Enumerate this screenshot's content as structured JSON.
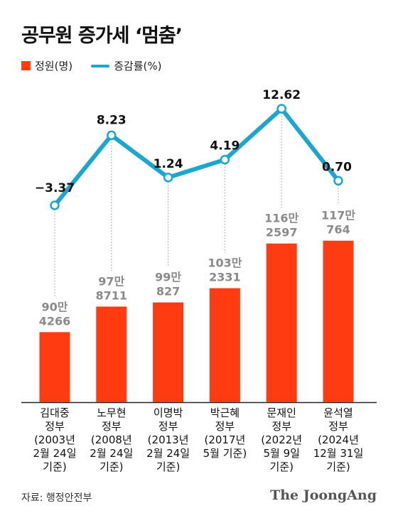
{
  "title": "공무원 증가세 ‘멈춤’",
  "legend": {
    "bar": "정원(명)",
    "line": "증감률(%)"
  },
  "source": "자료: 행정안전부",
  "logo": "The JoongAng",
  "colors": {
    "bar": "#ff3b12",
    "line": "#1aa6cf",
    "guide": "#9a9a9a"
  },
  "chart_data": {
    "type": "bar",
    "categories": [
      [
        "김대중",
        "정부",
        "(2003년",
        "2월 24일",
        "기준)"
      ],
      [
        "노무현",
        "정부",
        "(2008년",
        "2월 24일",
        "기준)"
      ],
      [
        "이명박",
        "정부",
        "(2013년",
        "2월 24일",
        "기준)"
      ],
      [
        "박근혜",
        "정부",
        "(2017년",
        "5월 기준)"
      ],
      [
        "문재인",
        "정부",
        "(2022년",
        "5월 9일",
        "기준)"
      ],
      [
        "윤석열",
        "정부",
        "(2024년",
        "12월 31일",
        "기준)"
      ]
    ],
    "series": [
      {
        "name": "정원(명)",
        "type": "bar",
        "values": [
          904266,
          978711,
          990827,
          1032331,
          1162597,
          1170764
        ],
        "labels": [
          [
            "90만",
            "4266"
          ],
          [
            "97만",
            "8711"
          ],
          [
            "99만",
            "827"
          ],
          [
            "103만",
            "2331"
          ],
          [
            "116만",
            "2597"
          ],
          [
            "117만",
            "764"
          ]
        ]
      },
      {
        "name": "증감률(%)",
        "type": "line",
        "values": [
          -3.37,
          8.23,
          1.24,
          4.19,
          12.62,
          0.7
        ],
        "labels": [
          "−3.37",
          "8.23",
          "1.24",
          "4.19",
          "12.62",
          "0.70"
        ]
      }
    ]
  }
}
